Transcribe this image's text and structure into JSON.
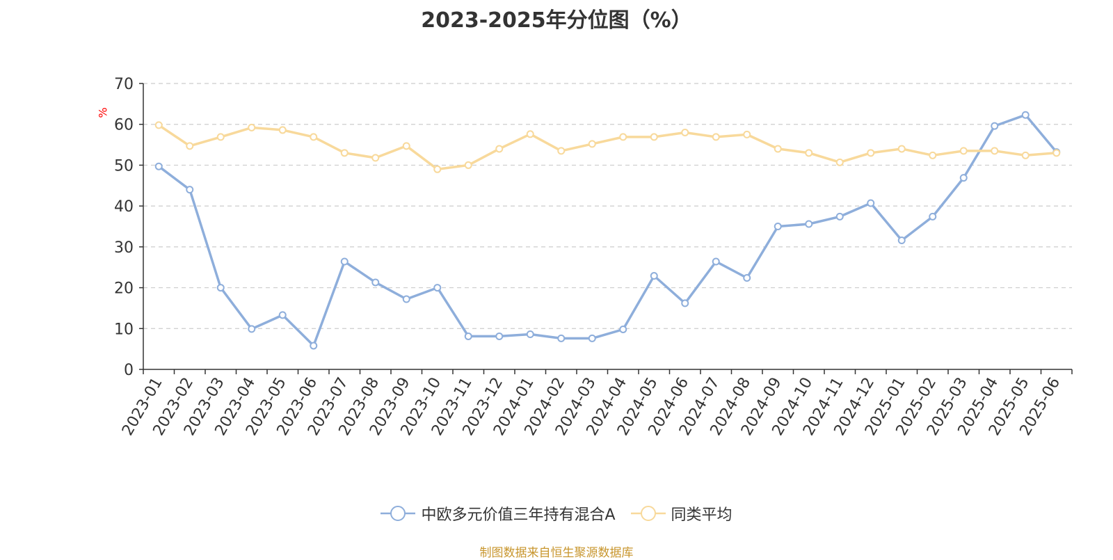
{
  "chart_data": {
    "type": "line",
    "title": "2023-2025年分位图（%）",
    "ylabel": "%",
    "ylim": [
      0,
      70
    ],
    "yticks": [
      0,
      10,
      20,
      30,
      40,
      50,
      60,
      70
    ],
    "grid": true,
    "legend_position": "bottom",
    "categories": [
      "2023-01",
      "2023-02",
      "2023-03",
      "2023-04",
      "2023-05",
      "2023-06",
      "2023-07",
      "2023-08",
      "2023-09",
      "2023-10",
      "2023-11",
      "2023-12",
      "2024-01",
      "2024-02",
      "2024-03",
      "2024-04",
      "2024-05",
      "2024-06",
      "2024-07",
      "2024-08",
      "2024-09",
      "2024-10",
      "2024-11",
      "2024-12",
      "2025-01",
      "2025-02",
      "2025-03",
      "2025-04",
      "2025-05",
      "2025-06"
    ],
    "series": [
      {
        "name": "中欧多元价值三年持有混合A",
        "color": "#8eaedb",
        "values": [
          49.7,
          44.0,
          20.0,
          9.9,
          13.3,
          5.8,
          26.4,
          21.3,
          17.2,
          20.0,
          8.1,
          8.1,
          8.6,
          7.6,
          7.6,
          9.8,
          22.9,
          16.2,
          26.4,
          22.4,
          35.0,
          35.6,
          37.4,
          40.7,
          31.6,
          37.4,
          46.9,
          59.6,
          62.3,
          53.2
        ]
      },
      {
        "name": "同类平均",
        "color": "#f8d99b",
        "values": [
          59.8,
          54.7,
          56.9,
          59.2,
          58.6,
          56.9,
          53.0,
          51.8,
          54.7,
          49.0,
          50.0,
          54.0,
          57.6,
          53.5,
          55.2,
          56.9,
          56.9,
          58.0,
          56.9,
          57.5,
          54.0,
          53.0,
          50.7,
          53.0,
          54.0,
          52.4,
          53.5,
          53.5,
          52.4,
          53.0
        ]
      }
    ]
  },
  "source_text": "制图数据来自恒生聚源数据库",
  "axis_color": "#333333",
  "grid_color": "#cccccc",
  "ylabel_color": "#ff0000"
}
